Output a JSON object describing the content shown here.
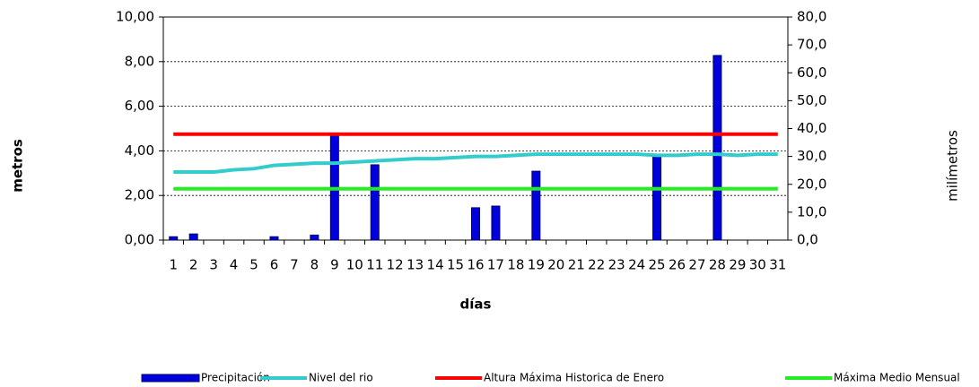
{
  "chart_data": {
    "type": "bar",
    "categories": [
      "1",
      "2",
      "3",
      "4",
      "5",
      "6",
      "7",
      "8",
      "9",
      "10",
      "11",
      "12",
      "13",
      "14",
      "15",
      "16",
      "17",
      "18",
      "19",
      "20",
      "21",
      "22",
      "23",
      "24",
      "25",
      "26",
      "27",
      "28",
      "29",
      "30",
      "31"
    ],
    "ylabel": "metros",
    "y2label": "milímetros",
    "xlabel": "días",
    "ylim": [
      0,
      10
    ],
    "yticks": [
      {
        "value": 0,
        "label": "0,00"
      },
      {
        "value": 2,
        "label": "2,00"
      },
      {
        "value": 4,
        "label": "4,00"
      },
      {
        "value": 6,
        "label": "6,00"
      },
      {
        "value": 8,
        "label": "8,00"
      },
      {
        "value": 10,
        "label": "10,00"
      }
    ],
    "y2lim": [
      0,
      80
    ],
    "y2ticks": [
      {
        "value": 0,
        "label": "0,0"
      },
      {
        "value": 10,
        "label": "10,0"
      },
      {
        "value": 20,
        "label": "20,0"
      },
      {
        "value": 30,
        "label": "30,0"
      },
      {
        "value": 40,
        "label": "40,0"
      },
      {
        "value": 50,
        "label": "50,0"
      },
      {
        "value": 60,
        "label": "60,0"
      },
      {
        "value": 70,
        "label": "70,0"
      },
      {
        "value": 80,
        "label": "80,0"
      }
    ],
    "grid": true,
    "legend": "bottom",
    "series": [
      {
        "name": "Precipitación",
        "type": "bar",
        "axis": "y2",
        "color": "#0000dd",
        "values": [
          1.2,
          2.2,
          0,
          0,
          0,
          1.2,
          0,
          1.8,
          37.6,
          0,
          27,
          0,
          0,
          0,
          0,
          11.6,
          12.2,
          0,
          24.7,
          0,
          0,
          0,
          0,
          0,
          30.2,
          0,
          0,
          66.2,
          0,
          0,
          0
        ]
      },
      {
        "name": "Nivel del rio",
        "type": "line",
        "color": "#33cccc",
        "values": [
          3.05,
          3.05,
          3.05,
          3.15,
          3.2,
          3.35,
          3.4,
          3.45,
          3.45,
          3.5,
          3.55,
          3.6,
          3.65,
          3.65,
          3.7,
          3.75,
          3.75,
          3.8,
          3.85,
          3.85,
          3.85,
          3.85,
          3.85,
          3.85,
          3.8,
          3.8,
          3.85,
          3.85,
          3.8,
          3.85,
          3.85
        ]
      },
      {
        "name": "Altura Máxima Historica de Enero",
        "type": "line",
        "color": "#ff0000",
        "values": [
          4.75,
          4.75,
          4.75,
          4.75,
          4.75,
          4.75,
          4.75,
          4.75,
          4.75,
          4.75,
          4.75,
          4.75,
          4.75,
          4.75,
          4.75,
          4.75,
          4.75,
          4.75,
          4.75,
          4.75,
          4.75,
          4.75,
          4.75,
          4.75,
          4.75,
          4.75,
          4.75,
          4.75,
          4.75,
          4.75,
          4.75
        ]
      },
      {
        "name": "Máxima Medio Mensual",
        "type": "line",
        "color": "#22ee22",
        "values": [
          2.3,
          2.3,
          2.3,
          2.3,
          2.3,
          2.3,
          2.3,
          2.3,
          2.3,
          2.3,
          2.3,
          2.3,
          2.3,
          2.3,
          2.3,
          2.3,
          2.3,
          2.3,
          2.3,
          2.3,
          2.3,
          2.3,
          2.3,
          2.3,
          2.3,
          2.3,
          2.3,
          2.3,
          2.3,
          2.3,
          2.3
        ]
      }
    ]
  }
}
